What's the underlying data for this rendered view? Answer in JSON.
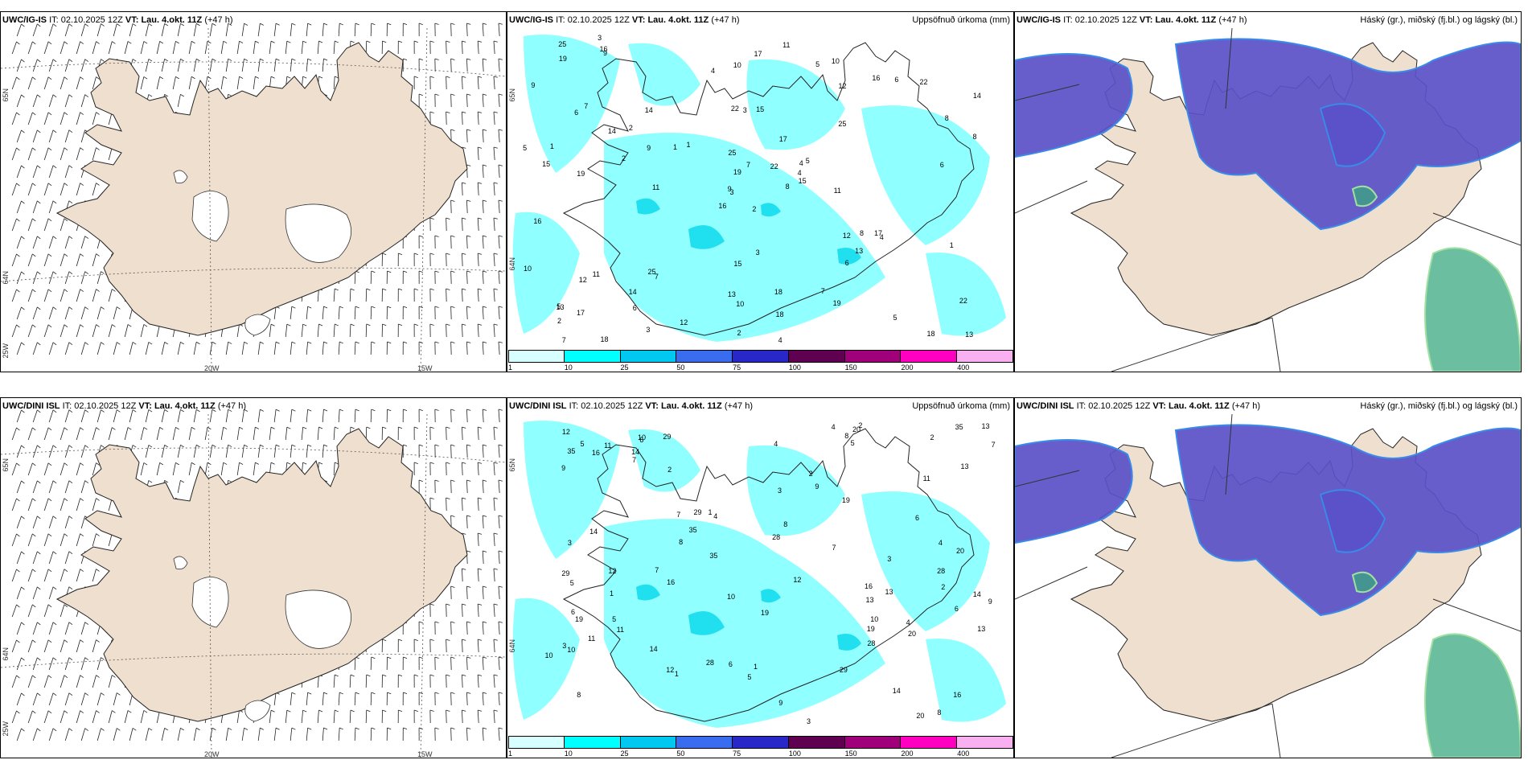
{
  "panels": [
    {
      "model": "UWC/IG-IS",
      "it_label": "IT:",
      "it": "02.10.2025 12Z",
      "vt_label": "VT:",
      "vt": "Lau. 4.okt. 11Z",
      "lead": "(+47 h)",
      "right_title": ""
    },
    {
      "model": "UWC/IG-IS",
      "it_label": "IT:",
      "it": "02.10.2025 12Z",
      "vt_label": "VT:",
      "vt": "Lau. 4.okt. 11Z",
      "lead": "(+47 h)",
      "right_title": "Uppsöfnuð úrkoma (mm)"
    },
    {
      "model": "UWC/IG-IS",
      "it_label": "IT:",
      "it": "02.10.2025 12Z",
      "vt_label": "VT:",
      "vt": "Lau. 4.okt. 11Z",
      "lead": "(+47 h)",
      "right_title": "Háský (gr.), miðský (fj.bl.) og lágský (bl.)"
    },
    {
      "model": "UWC/DINI ISL",
      "it_label": "IT:",
      "it": "02.10.2025 12Z",
      "vt_label": "VT:",
      "vt": "Lau. 4.okt. 11Z",
      "lead": "(+47 h)",
      "right_title": ""
    },
    {
      "model": "UWC/DINI ISL",
      "it_label": "IT:",
      "it": "02.10.2025 12Z",
      "vt_label": "VT:",
      "vt": "Lau. 4.okt. 11Z",
      "lead": "(+47 h)",
      "right_title": "Uppsöfnuð úrkoma (mm)"
    },
    {
      "model": "UWC/DINI ISL",
      "it_label": "IT:",
      "it": "02.10.2025 12Z",
      "vt_label": "VT:",
      "vt": "Lau. 4.okt. 11Z",
      "lead": "(+47 h)",
      "right_title": "Háský (gr.), miðský (fj.bl.) og lágský (bl.)"
    }
  ],
  "grid_labels": {
    "lat65": "65N",
    "lat64": "64N",
    "lon25": "25W",
    "lon20": "20W",
    "lon15": "15W"
  },
  "colorbar": {
    "ticks": [
      "1",
      "10",
      "25",
      "50",
      "75",
      "100",
      "150",
      "200",
      "400"
    ],
    "colors": [
      "#d8ffff",
      "#00ffff",
      "#00c8f0",
      "#3a6cf0",
      "#2828c8",
      "#600050",
      "#a0007a",
      "#ff00c0",
      "#f8b0f0"
    ]
  },
  "colors": {
    "land": "#efdfcf",
    "precip_light": "#90ffff",
    "precip_mid": "#20e0f0",
    "cloud_mid": "#5a50c8",
    "cloud_low": "#3aa880"
  },
  "precip_numbers_top": [
    "2",
    "6",
    "3",
    "5",
    "4",
    "7",
    "10",
    "15",
    "12",
    "8",
    "9",
    "13",
    "19",
    "14",
    "16",
    "25",
    "18",
    "22",
    "17",
    "11",
    "1"
  ],
  "precip_numbers_bottom": [
    "13",
    "2",
    "8",
    "6",
    "4",
    "14",
    "10",
    "5",
    "7",
    "3",
    "9",
    "29",
    "35",
    "16",
    "28",
    "20",
    "19",
    "12",
    "1",
    "11"
  ]
}
